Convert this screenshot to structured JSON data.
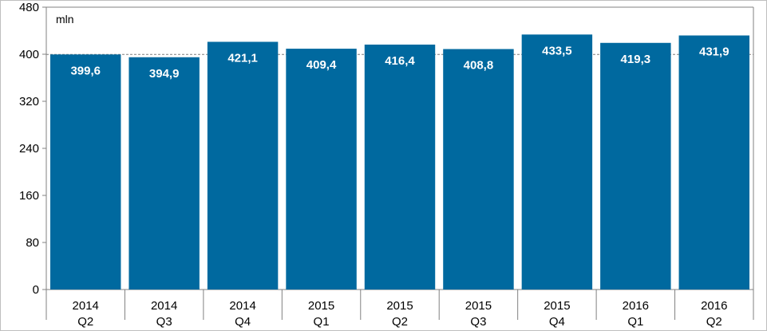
{
  "chart_data": {
    "type": "bar",
    "unit_label": "mln",
    "categories": [
      {
        "year": "2014",
        "quarter": "Q2"
      },
      {
        "year": "2014",
        "quarter": "Q3"
      },
      {
        "year": "2014",
        "quarter": "Q4"
      },
      {
        "year": "2015",
        "quarter": "Q1"
      },
      {
        "year": "2015",
        "quarter": "Q2"
      },
      {
        "year": "2015",
        "quarter": "Q3"
      },
      {
        "year": "2015",
        "quarter": "Q4"
      },
      {
        "year": "2016",
        "quarter": "Q1"
      },
      {
        "year": "2016",
        "quarter": "Q2"
      }
    ],
    "values": [
      399.6,
      394.9,
      421.1,
      409.4,
      416.4,
      408.8,
      433.5,
      419.3,
      431.9
    ],
    "value_labels": [
      "399,6",
      "394,9",
      "421,1",
      "409,4",
      "416,4",
      "408,8",
      "433,5",
      "419,3",
      "431,9"
    ],
    "reference_line": 399.6,
    "ylim": [
      0,
      480
    ],
    "yticks": [
      0,
      80,
      160,
      240,
      320,
      400,
      480
    ],
    "grid": false,
    "bar_color": "#00699f",
    "title": "",
    "xlabel": "",
    "ylabel": ""
  }
}
